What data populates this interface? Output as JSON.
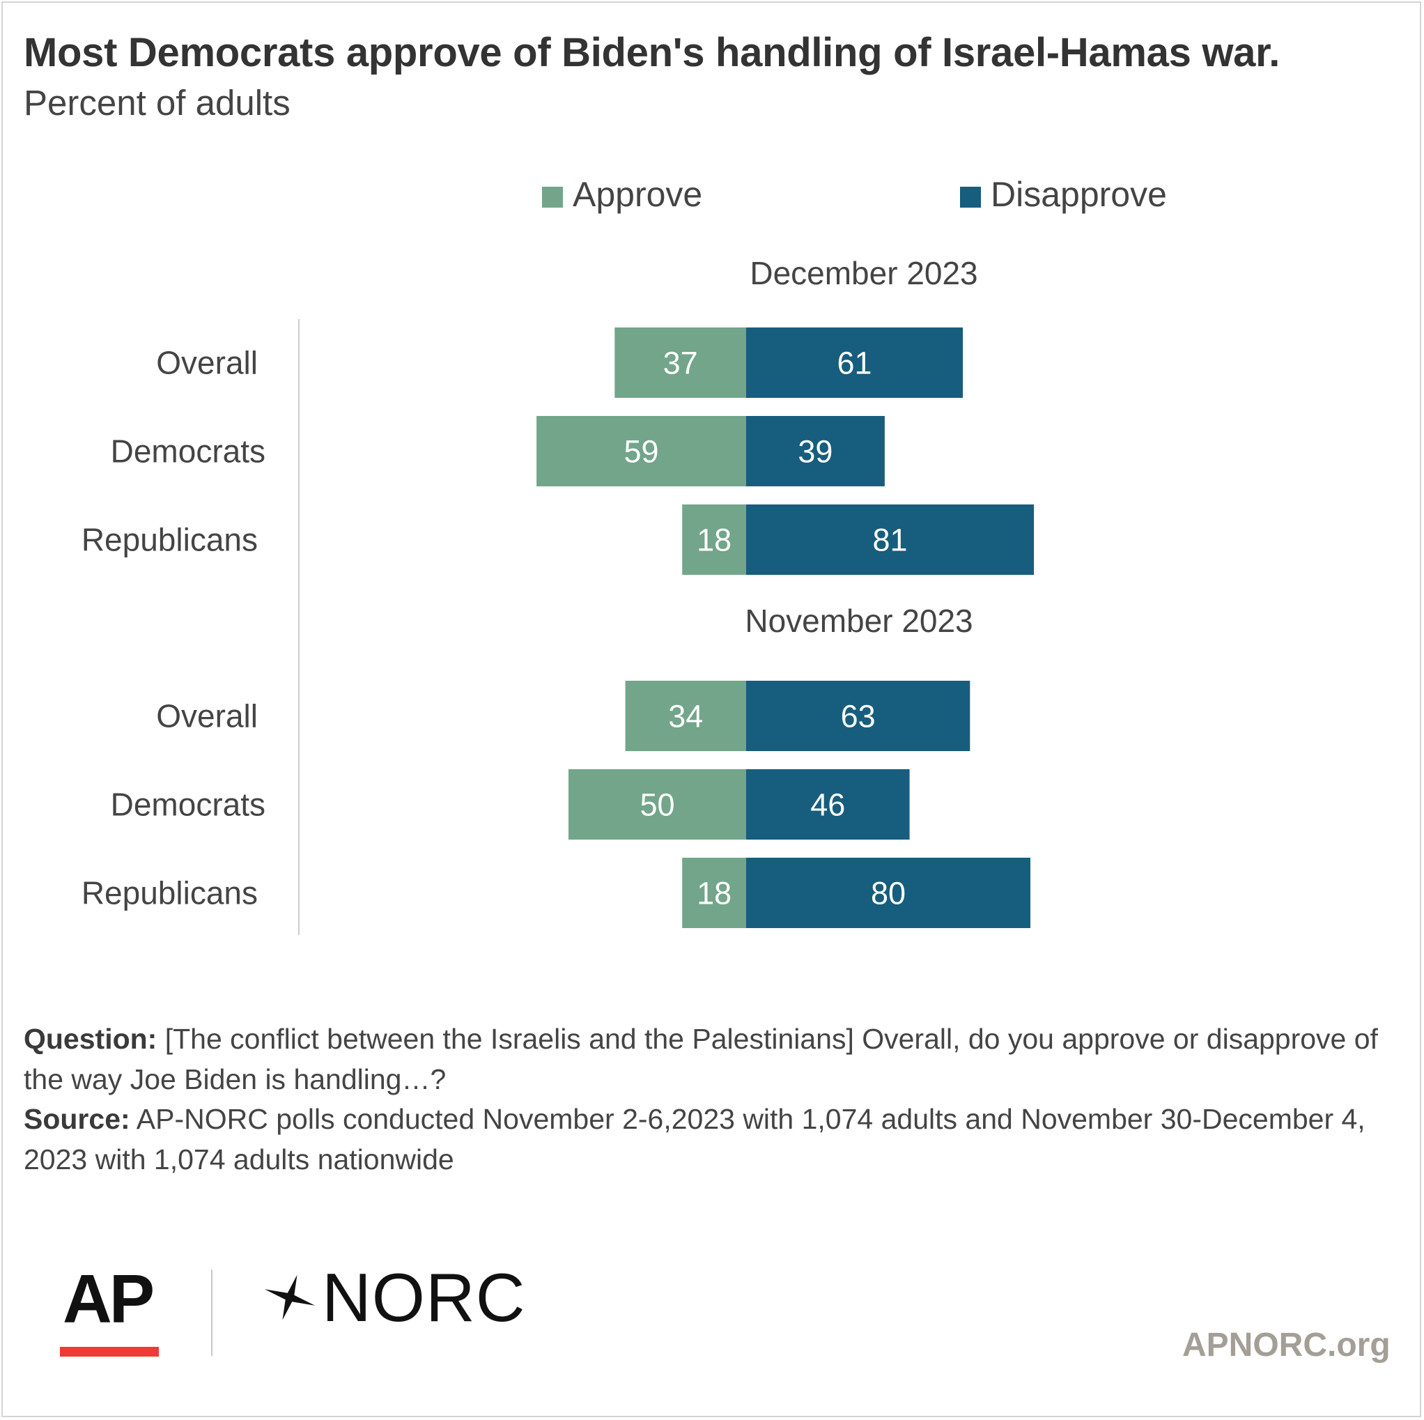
{
  "title": "Most Democrats approve of Biden's handling of Israel-Hamas war.",
  "subtitle": "Percent of adults",
  "colors": {
    "approve": "#72a58a",
    "disapprove": "#175d7d",
    "axis": "#cccccc",
    "text": "#444444"
  },
  "chart_data": {
    "type": "bar",
    "orientation": "horizontal",
    "stacked": "diverging",
    "legend": [
      "Approve",
      "Disapprove"
    ],
    "groups": [
      {
        "name": "December 2023",
        "categories": [
          "Overall",
          "Democrats",
          "Republicans"
        ],
        "series": [
          {
            "name": "Approve",
            "values": [
              37,
              59,
              18
            ]
          },
          {
            "name": "Disapprove",
            "values": [
              61,
              39,
              81
            ]
          }
        ]
      },
      {
        "name": "November 2023",
        "categories": [
          "Overall",
          "Democrats",
          "Republicans"
        ],
        "series": [
          {
            "name": "Approve",
            "values": [
              34,
              50,
              18
            ]
          },
          {
            "name": "Disapprove",
            "values": [
              63,
              46,
              80
            ]
          }
        ]
      }
    ]
  },
  "notes": {
    "question_label": "Question:",
    "question_text": " [The conflict between the Israelis and the Palestinians] Overall, do you approve or disapprove of the way Joe Biden is handling…?",
    "source_label": "Source:",
    "source_text": " AP-NORC polls conducted November 2-6,2023 with 1,074 adults and November 30-December 4, 2023 with 1,074 adults nationwide"
  },
  "footer": {
    "ap_logo": "AP",
    "norc_logo": "NORC",
    "norc_icon": "star-burst-icon",
    "site": "APNORC.org"
  }
}
